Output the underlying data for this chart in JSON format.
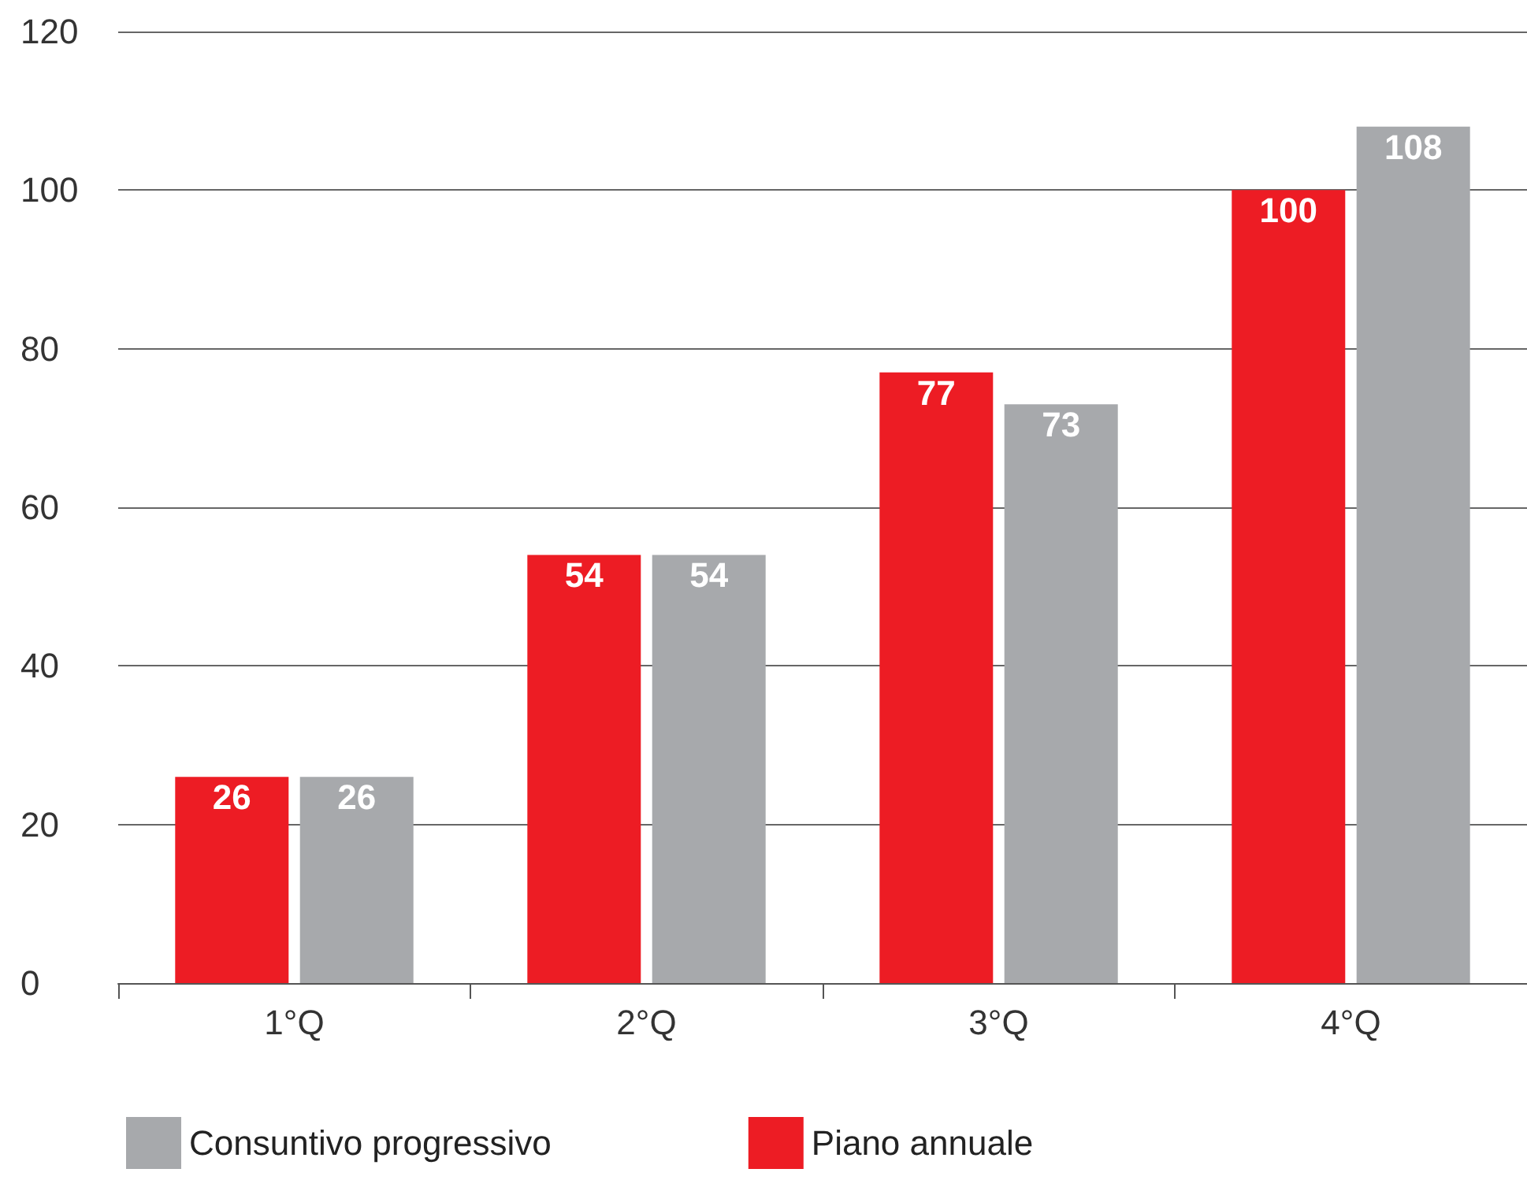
{
  "chart_data": {
    "type": "bar",
    "categories": [
      "1°Q",
      "2°Q",
      "3°Q",
      "4°Q"
    ],
    "series": [
      {
        "name": "Piano annuale",
        "color": "#ed1c24",
        "values": [
          26,
          54,
          77,
          100
        ]
      },
      {
        "name": "Consuntivo progressivo",
        "color": "#a7a9ac",
        "values": [
          26,
          54,
          73,
          108
        ]
      }
    ],
    "ylim": [
      0,
      120
    ],
    "yticks": [
      0,
      20,
      40,
      60,
      80,
      100,
      120
    ],
    "grid": "y",
    "data_labels": true,
    "legend": "bottom left"
  }
}
